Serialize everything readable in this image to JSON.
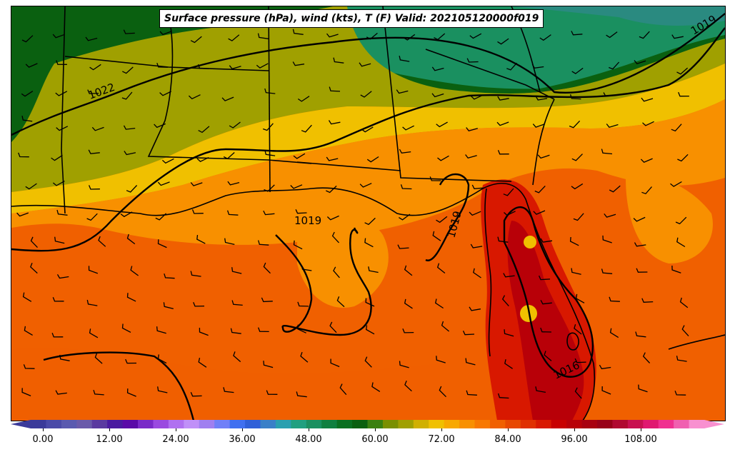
{
  "title": "Surface pressure (hPa), wind (kts), T (F) Valid: 202105120000f019",
  "contour_labels": [
    "1022",
    "1019",
    "1019",
    "1019",
    "1016"
  ],
  "colorbar": {
    "ticks": [
      "0.00",
      "12.00",
      "24.00",
      "36.00",
      "48.00",
      "60.00",
      "72.00",
      "84.00",
      "96.00",
      "108.00"
    ],
    "colors": [
      "#3a3a9a",
      "#4a4aa8",
      "#5a5ab0",
      "#6a5aaa",
      "#5a3aa0",
      "#4a1aa0",
      "#5a0aa8",
      "#7a2ac8",
      "#9a4ae0",
      "#b070f0",
      "#c090f8",
      "#a080f0",
      "#7080f8",
      "#4070f0",
      "#3060d8",
      "#3a80c8",
      "#2aa0b0",
      "#20a080",
      "#1a9060",
      "#108040",
      "#0a7020",
      "#0a6010",
      "#3a8010",
      "#7a9000",
      "#a0a000",
      "#d0b000",
      "#f0c000",
      "#f8a800",
      "#f89000",
      "#f87800",
      "#f06000",
      "#e84800",
      "#e03000",
      "#d81800",
      "#c80000",
      "#b80008",
      "#a80010",
      "#980018",
      "#b00830",
      "#c81050",
      "#e01870",
      "#f03090",
      "#f060b0",
      "#f890d0"
    ]
  },
  "map_legend": {
    "temperature_colors": {
      "cold_green": "#0a6010",
      "green": "#1a9060",
      "olive": "#a0a000",
      "yellow": "#f0c000",
      "orange": "#f89000",
      "orange_red": "#f06000",
      "red": "#c80000",
      "dark_red": "#a80010"
    }
  }
}
